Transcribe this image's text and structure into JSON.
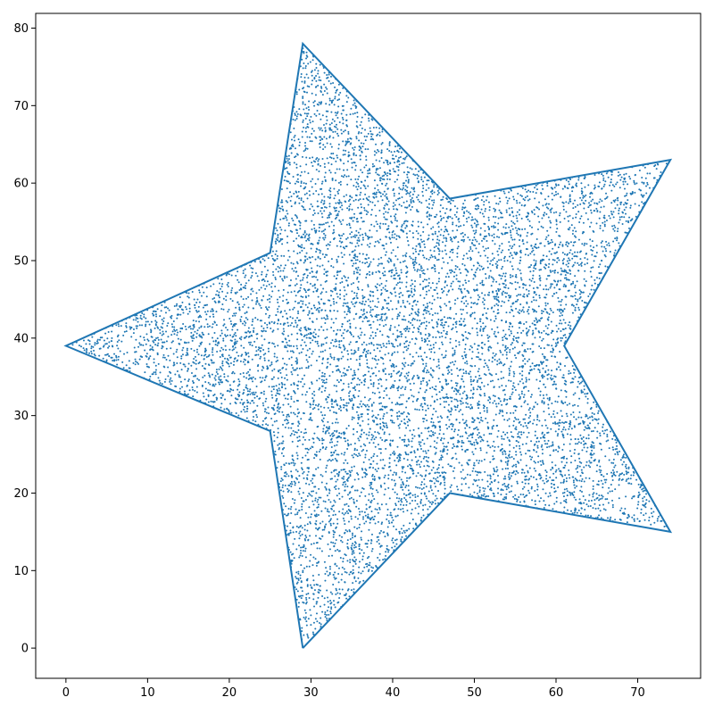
{
  "chart_data": {
    "type": "scatter",
    "title": "",
    "xlabel": "",
    "ylabel": "",
    "xlim": [
      -3.7,
      77.7
    ],
    "ylim": [
      -3.9,
      81.9
    ],
    "grid": false,
    "legend": "none",
    "xticks": [
      0,
      10,
      20,
      30,
      40,
      50,
      60,
      70
    ],
    "yticks": [
      0,
      10,
      20,
      30,
      40,
      50,
      60,
      70,
      80
    ],
    "series": [
      {
        "name": "star outline",
        "kind": "line",
        "color": "#1f77b4",
        "x": [
          29,
          47,
          74,
          61,
          74,
          47,
          29,
          25,
          0,
          25,
          29
        ],
        "y": [
          0,
          20,
          15,
          39,
          63,
          58,
          78,
          51,
          39,
          28,
          0
        ]
      },
      {
        "name": "sampled points",
        "kind": "scatter",
        "color": "#1f77b4",
        "count": 9000,
        "distribution": "uniform inside star polygon"
      }
    ]
  }
}
